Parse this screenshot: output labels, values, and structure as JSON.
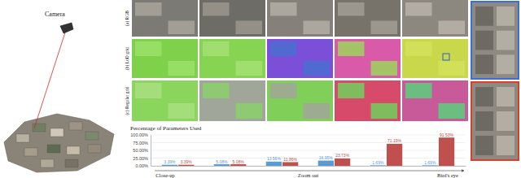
{
  "figure": {
    "camera_label": "Camera",
    "row_labels": [
      "(a) RGB",
      "(b) LoD grid",
      "(c) Regular grid"
    ]
  },
  "chart_data": {
    "type": "bar",
    "title": "Percentage of Parameters Used",
    "categories": [
      null,
      null,
      null,
      null,
      null,
      null
    ],
    "series": [
      {
        "color": "#5b9bd5",
        "values": [
          3.39,
          5.08,
          13.56,
          16.95,
          1.69,
          1.69
        ],
        "value_labels": [
          "3.39%",
          "5.08%",
          "13.56%",
          "16.95%",
          "1.69%",
          "1.69%"
        ]
      },
      {
        "color": "#c0504d",
        "values": [
          3.39,
          5.08,
          11.86,
          23.73,
          71.19,
          91.53
        ],
        "value_labels": [
          "3.39%",
          "5.08%",
          "11.86%",
          "23.73%",
          "71.19%",
          "91.53%"
        ]
      }
    ],
    "ylim": [
      0,
      100
    ],
    "yticks": [
      {
        "value": 0,
        "label": "0.00%"
      },
      {
        "value": 25,
        "label": "25.00%"
      },
      {
        "value": 50,
        "label": "50.00%"
      },
      {
        "value": 75,
        "label": "75.00%"
      },
      {
        "value": 100,
        "label": "100.00%"
      }
    ],
    "grid": true,
    "data_labels": true,
    "tick_labels": "y",
    "annotations": [
      "Close-up",
      "Zoom out",
      "Bird's eye"
    ]
  }
}
